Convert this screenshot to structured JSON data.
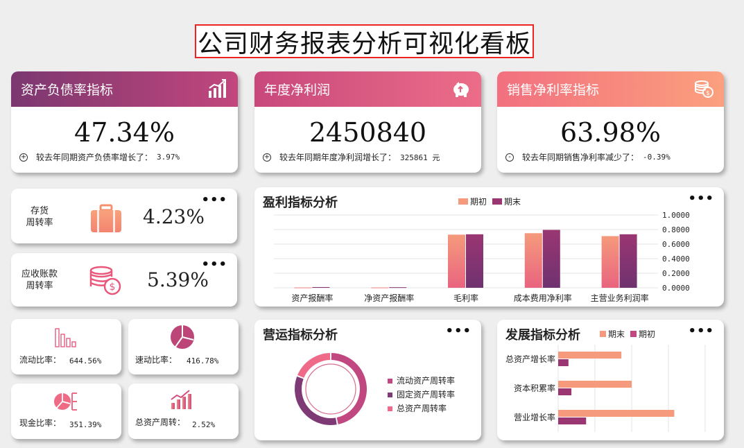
{
  "page_title": "公司财务报表分析可视化看板",
  "kpis": [
    {
      "title": "资产负债率指标",
      "icon": "bar-chart-icon",
      "value": "47.34%",
      "foot_label": "较去年同期资产负债率增长了：",
      "foot_value": "3.97%",
      "sign": "+"
    },
    {
      "title": "年度净利润",
      "icon": "piggy-bank-icon",
      "value": "2450840",
      "foot_label": "较去年同期年度净利润增长了：",
      "foot_value": "325861 元",
      "sign": "+"
    },
    {
      "title": "销售净利率指标",
      "icon": "coins-icon",
      "value": "63.98%",
      "foot_label": "较去年同期销售净利率减少了：",
      "foot_value": "-0.39%",
      "sign": "-"
    }
  ],
  "turnover": [
    {
      "label_line1": "存货",
      "label_line2": "周转率",
      "value": "4.23%",
      "icon": "luggage-icon"
    },
    {
      "label_line1": "应收账款",
      "label_line2": "周转率",
      "value": "5.39%",
      "icon": "coin-stack-icon"
    }
  ],
  "ratios": [
    {
      "label": "流动比率：",
      "value": "644.56%",
      "icon": "bar-outline-icon"
    },
    {
      "label": "速动比率：",
      "value": "416.78%",
      "icon": "pie-icon"
    },
    {
      "label": "现金比率：",
      "value": "351.39%",
      "icon": "pie-tree-icon"
    },
    {
      "label": "总资产周转：",
      "value": "2.52%",
      "icon": "growth-bars-icon"
    }
  ],
  "more_glyph": "•••",
  "profit_panel": {
    "title": "盈利指标分析"
  },
  "operating_panel": {
    "title": "营运指标分析"
  },
  "growth_panel": {
    "title": "发展指标分析"
  },
  "colors": {
    "accent_purple": "#8e3a7a",
    "accent_pink": "#e05a82",
    "accent_salmon": "#f9907a"
  },
  "chart_data": [
    {
      "type": "bar",
      "title": "盈利指标分析",
      "categories": [
        "资产报酬率",
        "净资产报酬率",
        "毛利率",
        "成本费用净利率",
        "主营业务利润率"
      ],
      "series": [
        {
          "name": "期初",
          "values": [
            0.005,
            0.005,
            0.73,
            0.75,
            0.71
          ],
          "color": "#f59a7c"
        },
        {
          "name": "期末",
          "values": [
            0.01,
            0.008,
            0.735,
            0.795,
            0.735
          ],
          "color": "#9a3672"
        }
      ],
      "ylim": [
        0,
        1
      ],
      "yticks": [
        "0.0000",
        "0.2000",
        "0.4000",
        "0.6000",
        "0.8000",
        "1.0000"
      ],
      "y_axis_position": "right",
      "legend": "top",
      "grid": true
    },
    {
      "type": "pie",
      "title": "营运指标分析",
      "donut": true,
      "series": [
        {
          "name": "流动资产周转率",
          "values": [
            0.47
          ],
          "color": "#c0477f"
        },
        {
          "name": "固定资产周转率",
          "values": [
            0.34
          ],
          "color": "#7e3a75"
        },
        {
          "name": "总资产周转率",
          "values": [
            0.19
          ],
          "color": "#ee6a88"
        }
      ],
      "legend": "right"
    },
    {
      "type": "bar",
      "orientation": "horizontal",
      "title": "发展指标分析",
      "categories": [
        "总资产增长率",
        "资本积累率",
        "营业增长率"
      ],
      "series": [
        {
          "name": "期末",
          "values": [
            0.43,
            0.5,
            0.79
          ],
          "color": "#f59a7c"
        },
        {
          "name": "期初",
          "values": [
            0.07,
            0.09,
            0.19
          ],
          "color": "#9a3672"
        }
      ],
      "legend": "top",
      "grid": true
    }
  ]
}
